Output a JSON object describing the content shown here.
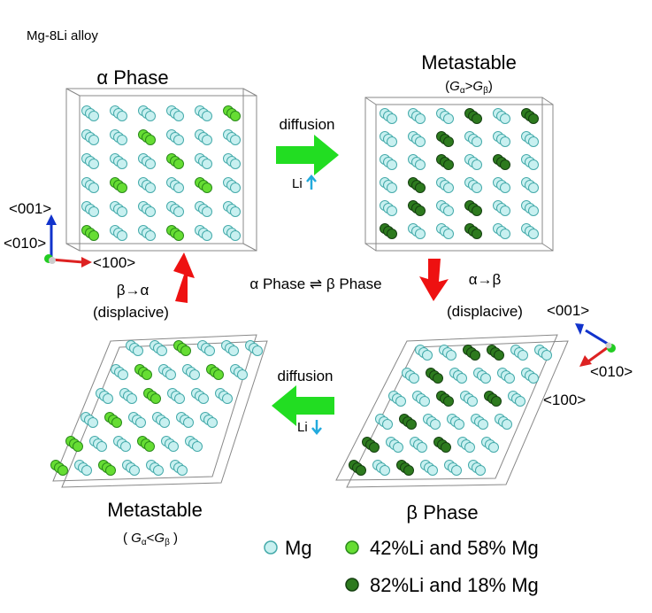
{
  "header": {
    "title": "Mg-8Li alloy"
  },
  "panels": [
    {
      "title": "α Phase"
    },
    {
      "title": "Metastable",
      "condition": {
        "g1": "G",
        "s1": "α",
        "op": ">",
        "g2": "G",
        "s2": "β"
      }
    },
    {
      "title": "β Phase"
    },
    {
      "title": "Metastable",
      "condition": {
        "g1": "G",
        "s1": "α",
        "op": "<",
        "g2": "G",
        "s2": "β"
      }
    }
  ],
  "arrows": {
    "top": {
      "label": "diffusion",
      "species": "Li"
    },
    "bottom": {
      "label": "diffusion",
      "species": "Li"
    },
    "left": {
      "label": "β→α",
      "note": "(displacive)"
    },
    "right": {
      "label": "α→β",
      "note": "(displacive)"
    },
    "center": "α Phase ⇌ β Phase"
  },
  "axes": [
    {
      "z": "<001>",
      "y": "<010>",
      "x": "<100>"
    },
    {
      "z": "<001>",
      "y": "<010>",
      "x": "<100>"
    }
  ],
  "legend": [
    {
      "label": "Mg"
    },
    {
      "label": "42%Li and 58% Mg"
    },
    {
      "label": "82%Li and 18% Mg"
    }
  ]
}
